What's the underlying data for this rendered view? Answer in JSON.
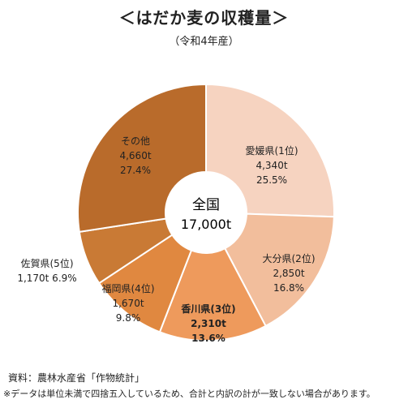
{
  "header": {
    "title": "＜はだか麦の収穫量＞",
    "subtitle": "（令和4年産）"
  },
  "center": {
    "label": "全国",
    "total": "17,000t"
  },
  "chart_data": {
    "type": "pie",
    "donut": true,
    "unit": "t",
    "total": 17000,
    "slices": [
      {
        "label": "愛媛県(1位)",
        "value": 4340,
        "value_text": "4,340t",
        "percent": 25.5,
        "percent_text": "25.5%",
        "color": "#F6D3C0",
        "bold": false
      },
      {
        "label": "大分県(2位)",
        "value": 2850,
        "value_text": "2,850t",
        "percent": 16.8,
        "percent_text": "16.8%",
        "color": "#F2BE9C",
        "bold": false
      },
      {
        "label": "香川県(3位)",
        "value": 2310,
        "value_text": "2,310t",
        "percent": 13.6,
        "percent_text": "13.6%",
        "color": "#EE9A5C",
        "bold": true
      },
      {
        "label": "福岡県(4位)",
        "value": 1670,
        "value_text": "1,670t",
        "percent": 9.8,
        "percent_text": "9.8%",
        "color": "#E08840",
        "bold": false
      },
      {
        "label": "佐賀県(5位)",
        "value": 1170,
        "value_text": "1,170t",
        "percent": 6.9,
        "percent_text": "6.9%",
        "color": "#C97A35",
        "bold": false
      },
      {
        "label": "その他",
        "value": 4660,
        "value_text": "4,660t",
        "percent": 27.4,
        "percent_text": "27.4%",
        "color": "#B96B2B",
        "bold": false
      }
    ]
  },
  "footer": {
    "source": "資料：農林水産省「作物統計」",
    "note": "※データは単位未満で四捨五入しているため、合計と内訳の計が一致しない場合があります。"
  }
}
